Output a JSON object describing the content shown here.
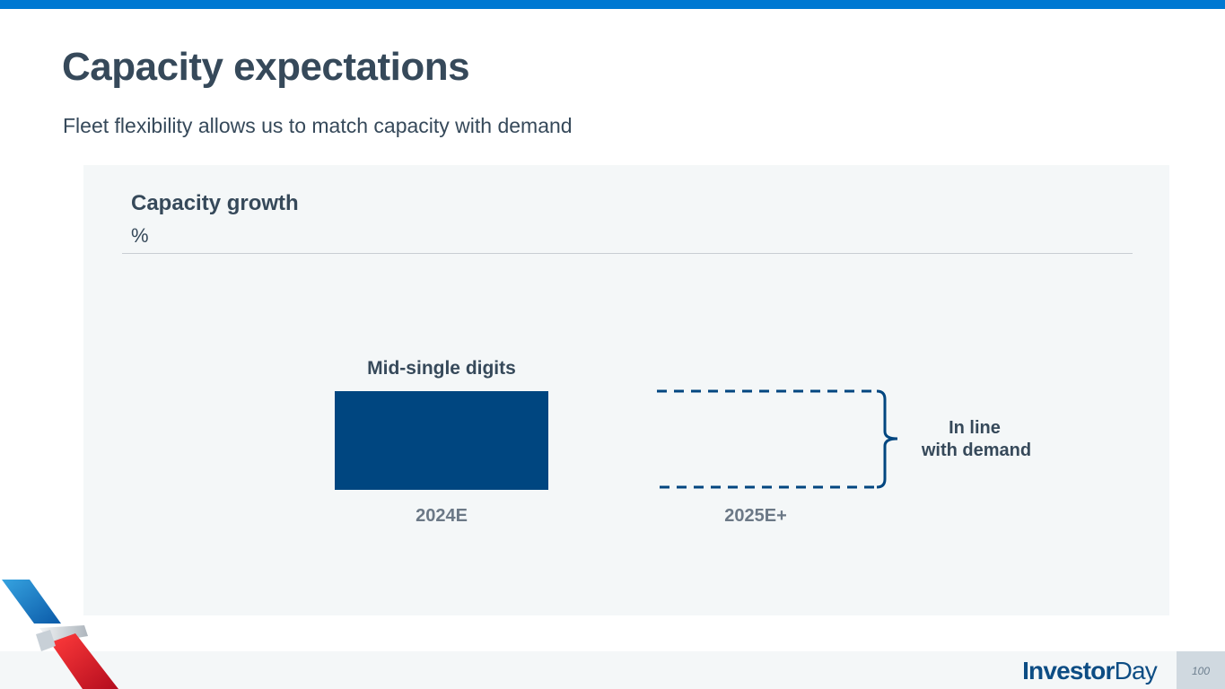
{
  "slide": {
    "title": "Capacity expectations",
    "subtitle": "Fleet flexibility allows us to match capacity with demand"
  },
  "chart_data": {
    "type": "bar",
    "title": "Capacity growth",
    "ylabel": "%",
    "categories": [
      "2024E",
      "2025E+"
    ],
    "bars": [
      {
        "category": "2024E",
        "label": "Mid-single digits",
        "style": "solid"
      },
      {
        "category": "2025E+",
        "label": "In line with demand",
        "label_lines": [
          "In line",
          "with demand"
        ],
        "style": "dashed-outline-with-bracket"
      }
    ],
    "grid": false,
    "legend": "none"
  },
  "footer": {
    "brand_part1": "Investor",
    "brand_part2": "Day",
    "page_number": "100"
  },
  "colors": {
    "bar_fill": "#004680",
    "top_bar": "#0078d2",
    "title_text": "#36495a",
    "category_text": "#6b7886",
    "panel_bg": "#f4f7f8",
    "brand_text": "#0d4d84"
  }
}
